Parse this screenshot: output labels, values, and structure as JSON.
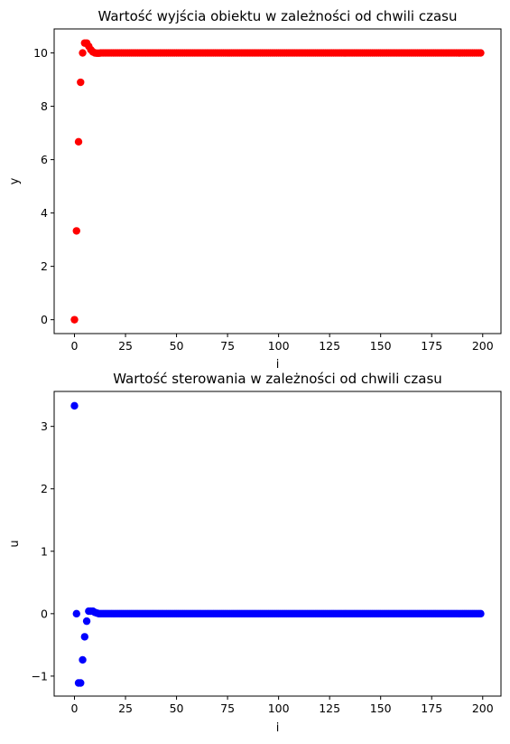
{
  "chart_data": [
    {
      "type": "scatter",
      "title": "Wartość wyjścia obiektu w zależności od chwili czasu",
      "xlabel": "i",
      "ylabel": "y",
      "xlim": [
        -9.95,
        208.95
      ],
      "ylim": [
        -0.52,
        10.9
      ],
      "xticks": [
        0,
        25,
        50,
        75,
        100,
        125,
        150,
        175,
        200
      ],
      "yticks": [
        0,
        2,
        4,
        6,
        8,
        10
      ],
      "yticklabels": [
        "0",
        "2",
        "4",
        "6",
        "8",
        "10"
      ],
      "color": "#ff0000",
      "grid": false,
      "series": [
        {
          "x_start": 0,
          "x_end": 199,
          "y_head": [
            0,
            3.33,
            6.67,
            8.9,
            10.0,
            10.37,
            10.37,
            10.25,
            10.12,
            10.04,
            10.0,
            9.99,
            9.99
          ],
          "y_rest": 10.0
        }
      ]
    },
    {
      "type": "scatter",
      "title": "Wartość sterowania w zależności od chwili czasu",
      "xlabel": "i",
      "ylabel": "u",
      "xlim": [
        -9.95,
        208.95
      ],
      "ylim": [
        -1.32,
        3.56
      ],
      "xticks": [
        0,
        25,
        50,
        75,
        100,
        125,
        150,
        175,
        200
      ],
      "yticks": [
        -1,
        0,
        1,
        2,
        3
      ],
      "yticklabels": [
        "−1",
        "0",
        "1",
        "2",
        "3"
      ],
      "color": "#0000ff",
      "grid": false,
      "series": [
        {
          "x_start": 0,
          "x_end": 199,
          "y_head": [
            3.33,
            0.0,
            -1.11,
            -1.11,
            -0.74,
            -0.37,
            -0.12,
            0.04,
            0.04,
            0.04,
            0.02,
            0.01,
            0.0
          ],
          "y_rest": 0.0
        }
      ]
    }
  ]
}
